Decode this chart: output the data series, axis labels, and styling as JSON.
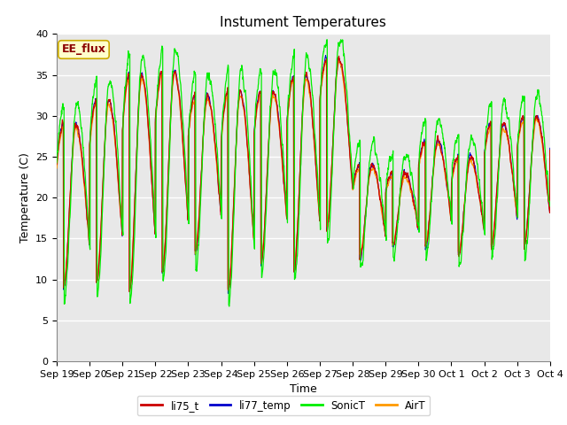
{
  "title": "Instument Temperatures",
  "xlabel": "Time",
  "ylabel": "Temperature (C)",
  "ylim": [
    0,
    40
  ],
  "yticks": [
    0,
    5,
    10,
    15,
    20,
    25,
    30,
    35,
    40
  ],
  "xtick_labels": [
    "Sep 19",
    "Sep 20",
    "Sep 21",
    "Sep 22",
    "Sep 23",
    "Sep 24",
    "Sep 25",
    "Sep 26",
    "Sep 27",
    "Sep 28",
    "Sep 29",
    "Sep 30",
    "Oct 1",
    "Oct 2",
    "Oct 3",
    "Oct 4"
  ],
  "series_colors": {
    "li75_t": "#cc0000",
    "li77_temp": "#0000cc",
    "SonicT": "#00ee00",
    "AirT": "#ff9900"
  },
  "annotation_text": "EE_flux",
  "annotation_bg": "#ffffcc",
  "annotation_border": "#ccaa00",
  "plot_bg": "#e8e8e8",
  "fig_bg": "#ffffff",
  "legend_colors": [
    "#cc0000",
    "#0000cc",
    "#00ee00",
    "#ff9900"
  ],
  "legend_labels": [
    "li75_t",
    "li77_temp",
    "SonicT",
    "AirT"
  ],
  "title_fontsize": 11,
  "axis_label_fontsize": 9,
  "tick_fontsize": 8
}
